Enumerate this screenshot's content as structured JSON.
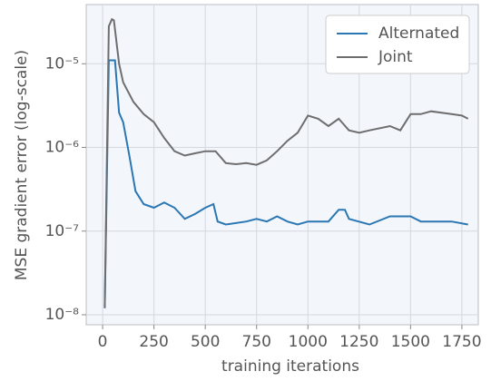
{
  "chart_data": {
    "type": "line",
    "xlabel": "training iterations",
    "ylabel": "MSE gradient error (log-scale)",
    "log_y": true,
    "grid": true,
    "legend": "upper right",
    "xlim": [
      -80,
      1830
    ],
    "ylim": [
      7.6e-09,
      5.1e-05
    ],
    "xticks": [
      0,
      250,
      500,
      750,
      1000,
      1250,
      1500,
      1750
    ],
    "yticks": [
      {
        "value": 1e-08,
        "label": "10⁻⁸"
      },
      {
        "value": 1e-07,
        "label": "10⁻⁷"
      },
      {
        "value": 1e-06,
        "label": "10⁻⁶"
      },
      {
        "value": 1e-05,
        "label": "10⁻⁵"
      }
    ],
    "series": [
      {
        "name": "Alternated",
        "color": "#2a77b4",
        "x": [
          10,
          30,
          60,
          80,
          100,
          130,
          160,
          200,
          250,
          300,
          350,
          400,
          450,
          500,
          540,
          560,
          600,
          700,
          750,
          800,
          850,
          900,
          950,
          1000,
          1100,
          1150,
          1180,
          1200,
          1300,
          1400,
          1500,
          1550,
          1650,
          1700,
          1780
        ],
        "values": [
          1.2e-08,
          1.1e-05,
          1.1e-05,
          2.6e-06,
          2e-06,
          8e-07,
          3e-07,
          2.1e-07,
          1.9e-07,
          2.2e-07,
          1.9e-07,
          1.4e-07,
          1.6e-07,
          1.9e-07,
          2.1e-07,
          1.3e-07,
          1.2e-07,
          1.3e-07,
          1.4e-07,
          1.3e-07,
          1.5e-07,
          1.3e-07,
          1.2e-07,
          1.3e-07,
          1.3e-07,
          1.8e-07,
          1.8e-07,
          1.4e-07,
          1.2e-07,
          1.5e-07,
          1.5e-07,
          1.3e-07,
          1.3e-07,
          1.3e-07,
          1.2e-07
        ]
      },
      {
        "name": "Joint",
        "color": "#6e6e70",
        "x": [
          10,
          30,
          45,
          55,
          80,
          100,
          150,
          200,
          250,
          300,
          350,
          400,
          450,
          500,
          550,
          600,
          650,
          700,
          750,
          800,
          850,
          900,
          950,
          1000,
          1050,
          1100,
          1150,
          1200,
          1250,
          1300,
          1400,
          1450,
          1500,
          1550,
          1600,
          1700,
          1750,
          1780
        ],
        "values": [
          1.2e-08,
          2.8e-05,
          3.4e-05,
          3.3e-05,
          1e-05,
          6e-06,
          3.5e-06,
          2.5e-06,
          2e-06,
          1.3e-06,
          9e-07,
          8e-07,
          8.5e-07,
          9e-07,
          9e-07,
          6.5e-07,
          6.3e-07,
          6.5e-07,
          6.2e-07,
          7e-07,
          9e-07,
          1.2e-06,
          1.5e-06,
          2.4e-06,
          2.2e-06,
          1.8e-06,
          2.2e-06,
          1.6e-06,
          1.5e-06,
          1.6e-06,
          1.8e-06,
          1.6e-06,
          2.5e-06,
          2.5e-06,
          2.7e-06,
          2.5e-06,
          2.4e-06,
          2.2e-06
        ]
      }
    ]
  }
}
